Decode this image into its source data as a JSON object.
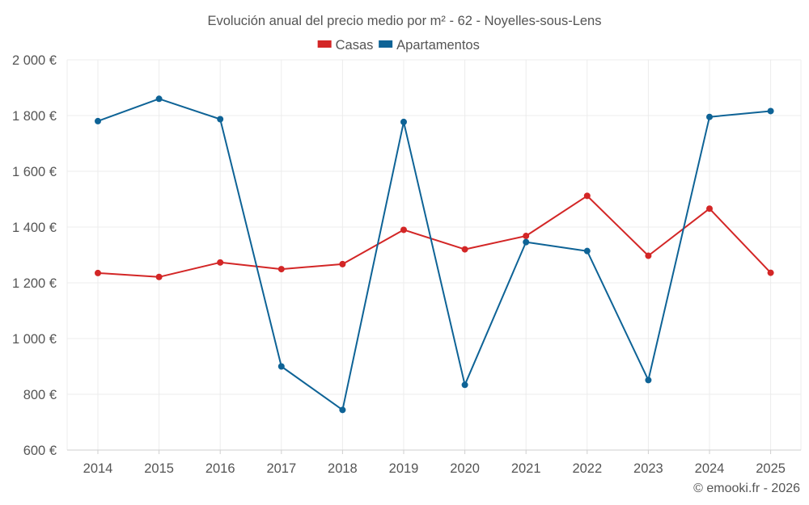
{
  "chart_data": {
    "type": "line",
    "title": "Evolución anual del precio medio por m² - 62 - Noyelles-sous-Lens",
    "categories": [
      "2014",
      "2015",
      "2016",
      "2017",
      "2018",
      "2019",
      "2020",
      "2021",
      "2022",
      "2023",
      "2024",
      "2025"
    ],
    "series": [
      {
        "name": "Casas",
        "color": "#d32626",
        "values": [
          1235,
          1221,
          1273,
          1249,
          1267,
          1390,
          1320,
          1368,
          1512,
          1297,
          1466,
          1236
        ]
      },
      {
        "name": "Apartamentos",
        "color": "#0e6396",
        "values": [
          1780,
          1860,
          1787,
          900,
          744,
          1777,
          834,
          1346,
          1314,
          851,
          1795,
          1816
        ]
      }
    ],
    "ylim": [
      600,
      2000
    ],
    "yticks": [
      600,
      800,
      1000,
      1200,
      1400,
      1600,
      1800,
      2000
    ],
    "ytick_labels": [
      "600 €",
      "800 €",
      "1 000 €",
      "1 200 €",
      "1 400 €",
      "1 600 €",
      "1 800 €",
      "2 000 €"
    ],
    "xlabel": "",
    "ylabel": "",
    "grid": true,
    "legend_position": "top-center"
  },
  "credit": "© emooki.fr - 2026"
}
